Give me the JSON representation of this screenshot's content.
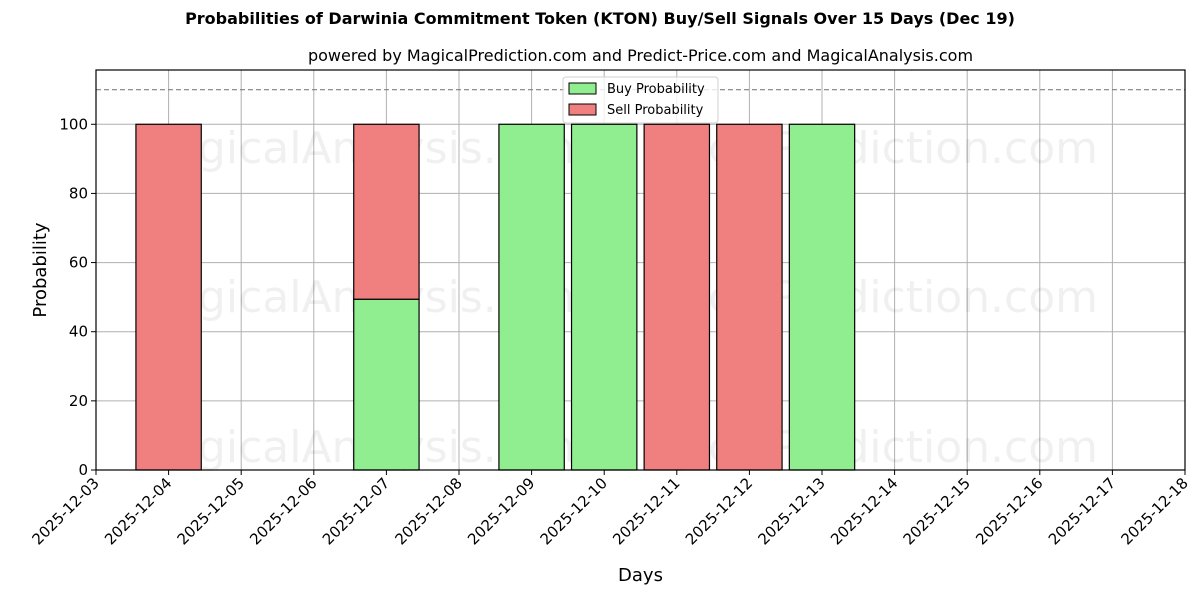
{
  "title": "Probabilities of Darwinia Commitment Token (KTON) Buy/Sell Signals Over 15 Days (Dec 19)",
  "subtitle": "powered by MagicalPrediction.com and Predict-Price.com and MagicalAnalysis.com",
  "watermarks": [
    "MagicalAnalysis.com",
    "MagicalPrediction.com"
  ],
  "colors": {
    "buy": "#90ee90",
    "sell": "#f08080",
    "grid": "#b0b0b0",
    "dashed": "#808080"
  },
  "chart_data": {
    "type": "bar",
    "stacked": true,
    "title": "Probabilities of Darwinia Commitment Token (KTON) Buy/Sell Signals Over 15 Days (Dec 19)",
    "subtitle": "powered by MagicalPrediction.com and Predict-Price.com and MagicalAnalysis.com",
    "xlabel": "Days",
    "ylabel": "Probability",
    "ylim": [
      0,
      115.7
    ],
    "yticks": [
      0,
      20,
      40,
      60,
      80,
      100
    ],
    "xticks": [
      "2025-12-03",
      "2025-12-04",
      "2025-12-05",
      "2025-12-06",
      "2025-12-07",
      "2025-12-08",
      "2025-12-09",
      "2025-12-10",
      "2025-12-11",
      "2025-12-12",
      "2025-12-13",
      "2025-12-14",
      "2025-12-15",
      "2025-12-16",
      "2025-12-17",
      "2025-12-18"
    ],
    "categories": [
      "2025-12-04",
      "2025-12-07",
      "2025-12-09",
      "2025-12-10",
      "2025-12-11",
      "2025-12-12",
      "2025-12-13"
    ],
    "series": [
      {
        "name": "Buy Probability",
        "color": "#90ee90",
        "values": [
          0,
          49.4,
          100,
          100,
          0,
          0,
          100
        ]
      },
      {
        "name": "Sell Probability",
        "color": "#f08080",
        "values": [
          100,
          50.6,
          0,
          0,
          100,
          100,
          0
        ]
      }
    ],
    "reference_line": {
      "y": 110,
      "style": "dashed"
    },
    "grid": true,
    "legend": {
      "position": "upper center",
      "entries": [
        "Buy Probability",
        "Sell Probability"
      ]
    }
  }
}
